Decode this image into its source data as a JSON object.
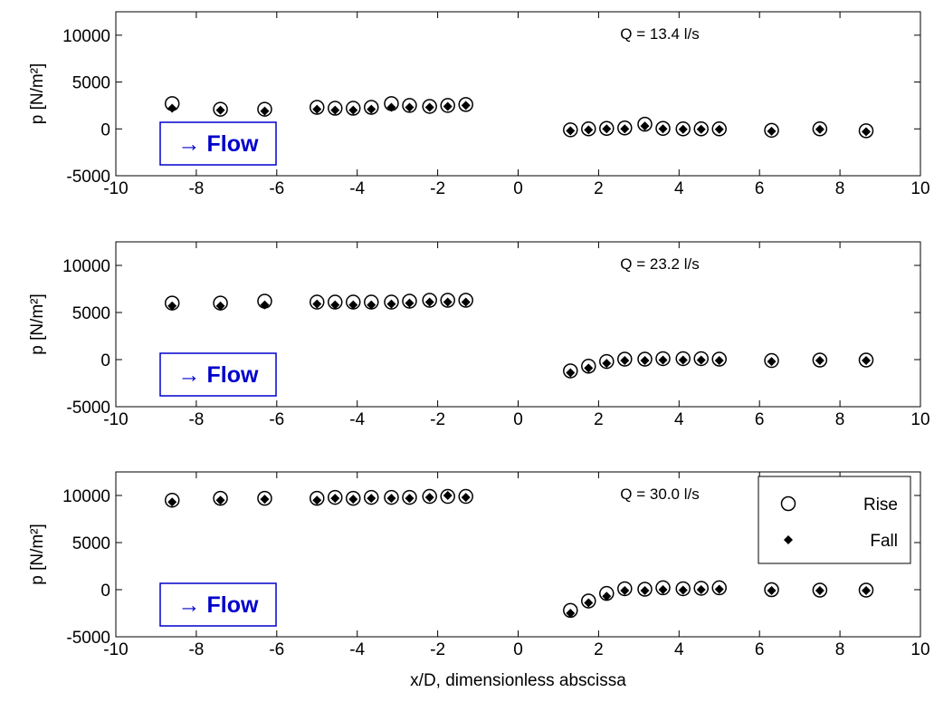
{
  "chart_data": [
    {
      "type": "scatter",
      "annotation": "Q = 13.4 l/s",
      "flow_label": "→ Flow",
      "ylabel": "p [N/m²]",
      "xlim": [
        -10,
        10
      ],
      "ylim": [
        -5000,
        12500
      ],
      "xticks": [
        -10,
        -8,
        -6,
        -4,
        -2,
        0,
        2,
        4,
        6,
        8,
        10
      ],
      "yticks": [
        10000,
        5000,
        0,
        -5000
      ],
      "series": [
        {
          "name": "Rise",
          "marker": "open-circle",
          "x": [
            -8.6,
            -7.4,
            -6.3,
            -5.0,
            -4.55,
            -4.1,
            -3.65,
            -3.15,
            -2.7,
            -2.2,
            -1.75,
            -1.3,
            1.3,
            1.75,
            2.2,
            2.65,
            3.15,
            3.6,
            4.1,
            4.55,
            5.0,
            6.3,
            7.5,
            8.65
          ],
          "y": [
            2700,
            2100,
            2100,
            2300,
            2200,
            2200,
            2300,
            2700,
            2500,
            2400,
            2500,
            2600,
            -100,
            0,
            50,
            100,
            500,
            50,
            0,
            0,
            0,
            -150,
            0,
            -200
          ]
        },
        {
          "name": "Fall",
          "marker": "filled-diamond",
          "x": [
            -8.6,
            -7.4,
            -6.3,
            -5.0,
            -4.55,
            -4.1,
            -3.65,
            -3.15,
            -2.7,
            -2.2,
            -1.75,
            -1.3,
            1.3,
            1.75,
            2.2,
            2.65,
            3.15,
            3.6,
            4.1,
            4.55,
            5.0,
            6.3,
            7.5,
            8.65
          ],
          "y": [
            2200,
            2000,
            1900,
            2100,
            2000,
            2000,
            2100,
            2300,
            2300,
            2300,
            2400,
            2500,
            -200,
            -100,
            0,
            0,
            300,
            0,
            -50,
            -50,
            -50,
            -250,
            -50,
            -300
          ]
        }
      ]
    },
    {
      "type": "scatter",
      "annotation": "Q = 23.2 l/s",
      "flow_label": "→ Flow",
      "ylabel": "p [N/m²]",
      "xlim": [
        -10,
        10
      ],
      "ylim": [
        -5000,
        12500
      ],
      "xticks": [
        -10,
        -8,
        -6,
        -4,
        -2,
        0,
        2,
        4,
        6,
        8,
        10
      ],
      "yticks": [
        10000,
        5000,
        0,
        -5000
      ],
      "series": [
        {
          "name": "Rise",
          "marker": "open-circle",
          "x": [
            -8.6,
            -7.4,
            -6.3,
            -5.0,
            -4.55,
            -4.1,
            -3.65,
            -3.15,
            -2.7,
            -2.2,
            -1.75,
            -1.3,
            1.3,
            1.75,
            2.2,
            2.65,
            3.15,
            3.6,
            4.1,
            4.55,
            5.0,
            6.3,
            7.5,
            8.65
          ],
          "y": [
            6000,
            6000,
            6200,
            6100,
            6100,
            6100,
            6100,
            6100,
            6200,
            6300,
            6300,
            6300,
            -1200,
            -700,
            -200,
            50,
            50,
            100,
            100,
            100,
            50,
            -100,
            -50,
            -50
          ]
        },
        {
          "name": "Fall",
          "marker": "filled-diamond",
          "x": [
            -8.6,
            -7.4,
            -6.3,
            -5.0,
            -4.55,
            -4.1,
            -3.65,
            -3.15,
            -2.7,
            -2.2,
            -1.75,
            -1.3,
            1.3,
            1.75,
            2.2,
            2.65,
            3.15,
            3.6,
            4.1,
            4.55,
            5.0,
            6.3,
            7.5,
            8.65
          ],
          "y": [
            5700,
            5700,
            5800,
            5900,
            5800,
            5800,
            5800,
            5900,
            6000,
            6100,
            6100,
            6100,
            -1400,
            -900,
            -400,
            -100,
            -100,
            -50,
            -50,
            -50,
            -100,
            -200,
            -100,
            -100
          ]
        }
      ]
    },
    {
      "type": "scatter",
      "annotation": "Q = 30.0 l/s",
      "flow_label": "→ Flow",
      "ylabel": "p [N/m²]",
      "xlabel": "x/D, dimensionless abscissa",
      "xlim": [
        -10,
        10
      ],
      "ylim": [
        -5000,
        12500
      ],
      "xticks": [
        -10,
        -8,
        -6,
        -4,
        -2,
        0,
        2,
        4,
        6,
        8,
        10
      ],
      "yticks": [
        10000,
        5000,
        0,
        -5000
      ],
      "legend": {
        "position": "top-right",
        "entries": [
          {
            "label": "Rise",
            "marker": "open-circle"
          },
          {
            "label": "Fall",
            "marker": "filled-diamond"
          }
        ]
      },
      "series": [
        {
          "name": "Rise",
          "marker": "open-circle",
          "x": [
            -8.6,
            -7.4,
            -6.3,
            -5.0,
            -4.55,
            -4.1,
            -3.65,
            -3.15,
            -2.7,
            -2.2,
            -1.75,
            -1.3,
            1.3,
            1.75,
            2.2,
            2.65,
            3.15,
            3.6,
            4.1,
            4.55,
            5.0,
            6.3,
            7.5,
            8.65
          ],
          "y": [
            9500,
            9700,
            9700,
            9700,
            9800,
            9700,
            9800,
            9800,
            9800,
            9900,
            9900,
            9900,
            -2200,
            -1200,
            -400,
            100,
            50,
            200,
            100,
            150,
            200,
            0,
            -50,
            -50
          ]
        },
        {
          "name": "Fall",
          "marker": "filled-diamond",
          "x": [
            -8.6,
            -7.4,
            -6.3,
            -5.0,
            -4.55,
            -4.1,
            -3.65,
            -3.15,
            -2.7,
            -2.2,
            -1.75,
            -1.3,
            1.3,
            1.75,
            2.2,
            2.65,
            3.15,
            3.6,
            4.1,
            4.55,
            5.0,
            6.3,
            7.5,
            8.65
          ],
          "y": [
            9300,
            9500,
            9600,
            9500,
            9700,
            9600,
            9700,
            9700,
            9700,
            9800,
            10000,
            9800,
            -2500,
            -1400,
            -700,
            -100,
            -100,
            0,
            -50,
            0,
            50,
            -100,
            -100,
            -100
          ]
        }
      ]
    }
  ]
}
